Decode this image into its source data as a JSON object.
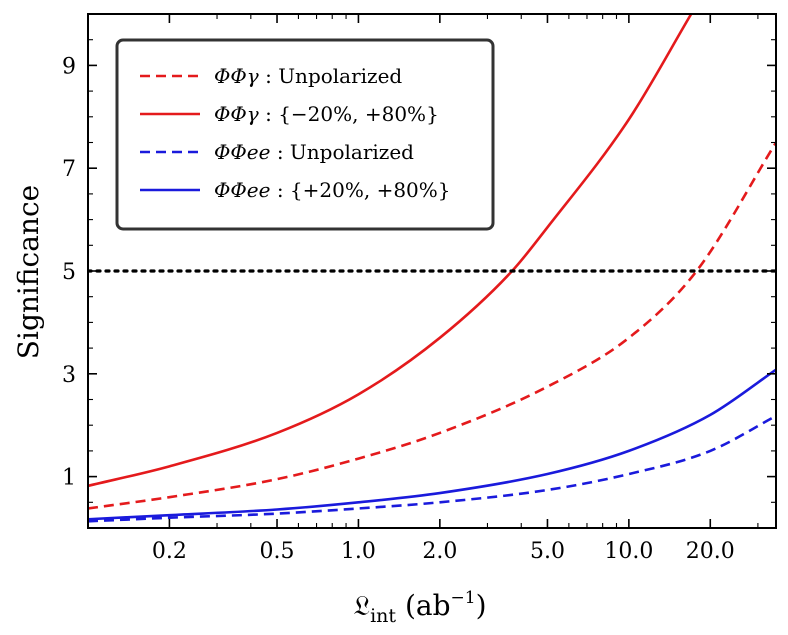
{
  "chart_data": {
    "type": "line",
    "title": "",
    "xlabel": "𝔏",
    "xlabel_sub": "int",
    "xlabel_unit_open": " (ab",
    "xlabel_unit_sup": "−1",
    "xlabel_unit_close": ")",
    "ylabel": "Significance",
    "xscale": "log",
    "xlim": [
      0.1,
      35
    ],
    "ylim": [
      0,
      10
    ],
    "xticks": [
      0.2,
      0.5,
      1.0,
      2.0,
      5.0,
      10.0,
      20.0
    ],
    "xtick_labels": [
      "0.2",
      "0.5",
      "1.0",
      "2.0",
      "5.0",
      "10.0",
      "20.0"
    ],
    "yticks": [
      1,
      3,
      5,
      7,
      9
    ],
    "ytick_labels": [
      "1",
      "3",
      "5",
      "7",
      "9"
    ],
    "grid": false,
    "legend_position": "top-left",
    "reference_line": {
      "y": 5,
      "style": "dotted",
      "color": "#000000"
    },
    "series": [
      {
        "name": "ΦΦγ : Unpolarized",
        "label_main": "ΦΦγ",
        "label_rest": " : Unpolarized",
        "color": "#e41a1c",
        "dash": "dashed",
        "x": [
          0.1,
          0.2,
          0.5,
          1.0,
          2.0,
          5.0,
          10.0,
          17.8,
          35
        ],
        "y": [
          0.38,
          0.6,
          0.95,
          1.35,
          1.85,
          2.75,
          3.7,
          5.0,
          7.5
        ]
      },
      {
        "name": "ΦΦγ : {−20%, +80%}",
        "label_main": "ΦΦγ",
        "label_rest": " : {−20%, +80%}",
        "color": "#e41a1c",
        "dash": "solid",
        "x": [
          0.1,
          0.2,
          0.5,
          1.0,
          2.0,
          3.7,
          5.0,
          10.0,
          17.0
        ],
        "y": [
          0.82,
          1.2,
          1.85,
          2.6,
          3.7,
          5.0,
          5.85,
          7.95,
          10.0
        ]
      },
      {
        "name": "ΦΦee : Unpolarized",
        "label_main": "ΦΦee",
        "label_rest": " : Unpolarized",
        "color": "#1a1adc",
        "dash": "dashed",
        "x": [
          0.1,
          0.2,
          0.5,
          1.0,
          2.0,
          5.0,
          10.0,
          20.0,
          35
        ],
        "y": [
          0.13,
          0.2,
          0.28,
          0.38,
          0.5,
          0.74,
          1.05,
          1.5,
          2.18
        ]
      },
      {
        "name": "ΦΦee : {+20%, +80%}",
        "label_main": "ΦΦee",
        "label_rest": " : {+20%, +80%}",
        "color": "#1a1adc",
        "dash": "solid",
        "x": [
          0.1,
          0.2,
          0.5,
          1.0,
          2.0,
          5.0,
          10.0,
          20.0,
          35
        ],
        "y": [
          0.17,
          0.25,
          0.36,
          0.5,
          0.68,
          1.05,
          1.5,
          2.2,
          3.08
        ]
      }
    ]
  }
}
